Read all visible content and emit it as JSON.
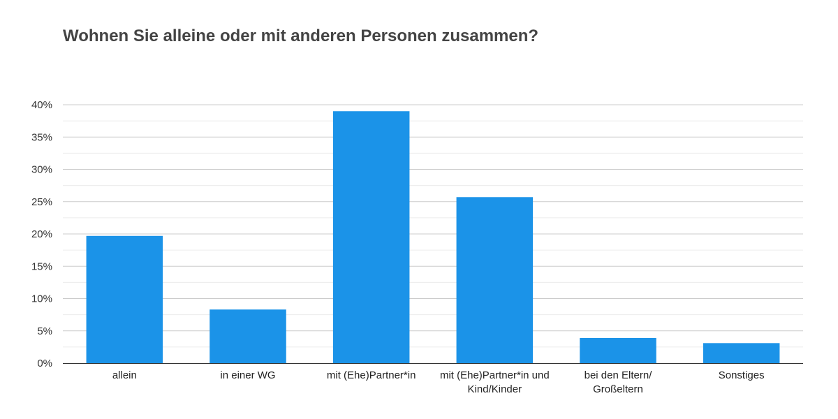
{
  "chart_data": {
    "type": "bar",
    "title": "Wohnen Sie alleine oder mit anderen Personen zusammen?",
    "xlabel": "",
    "ylabel": "",
    "categories": [
      [
        "allein"
      ],
      [
        "in einer WG"
      ],
      [
        "mit (Ehe)Partner*in"
      ],
      [
        "mit (Ehe)Partner*in und",
        "Kind/Kinder"
      ],
      [
        "bei den Eltern/",
        "Großeltern"
      ],
      [
        "Sonstiges"
      ]
    ],
    "values": [
      19.7,
      8.3,
      39.0,
      25.7,
      3.9,
      3.1
    ],
    "value_unit": "%",
    "ylim": [
      0,
      40
    ],
    "yticks": [
      "0%",
      "5%",
      "10%",
      "15%",
      "20%",
      "25%",
      "30%",
      "35%",
      "40%"
    ],
    "ytick_values": [
      0,
      5,
      10,
      15,
      20,
      25,
      30,
      35,
      40
    ],
    "grid": true,
    "legend": "none",
    "colors": {
      "bar": "#1b93e8",
      "grid": "#cccccc",
      "minor_grid": "#ececec",
      "axis": "#333333"
    }
  }
}
